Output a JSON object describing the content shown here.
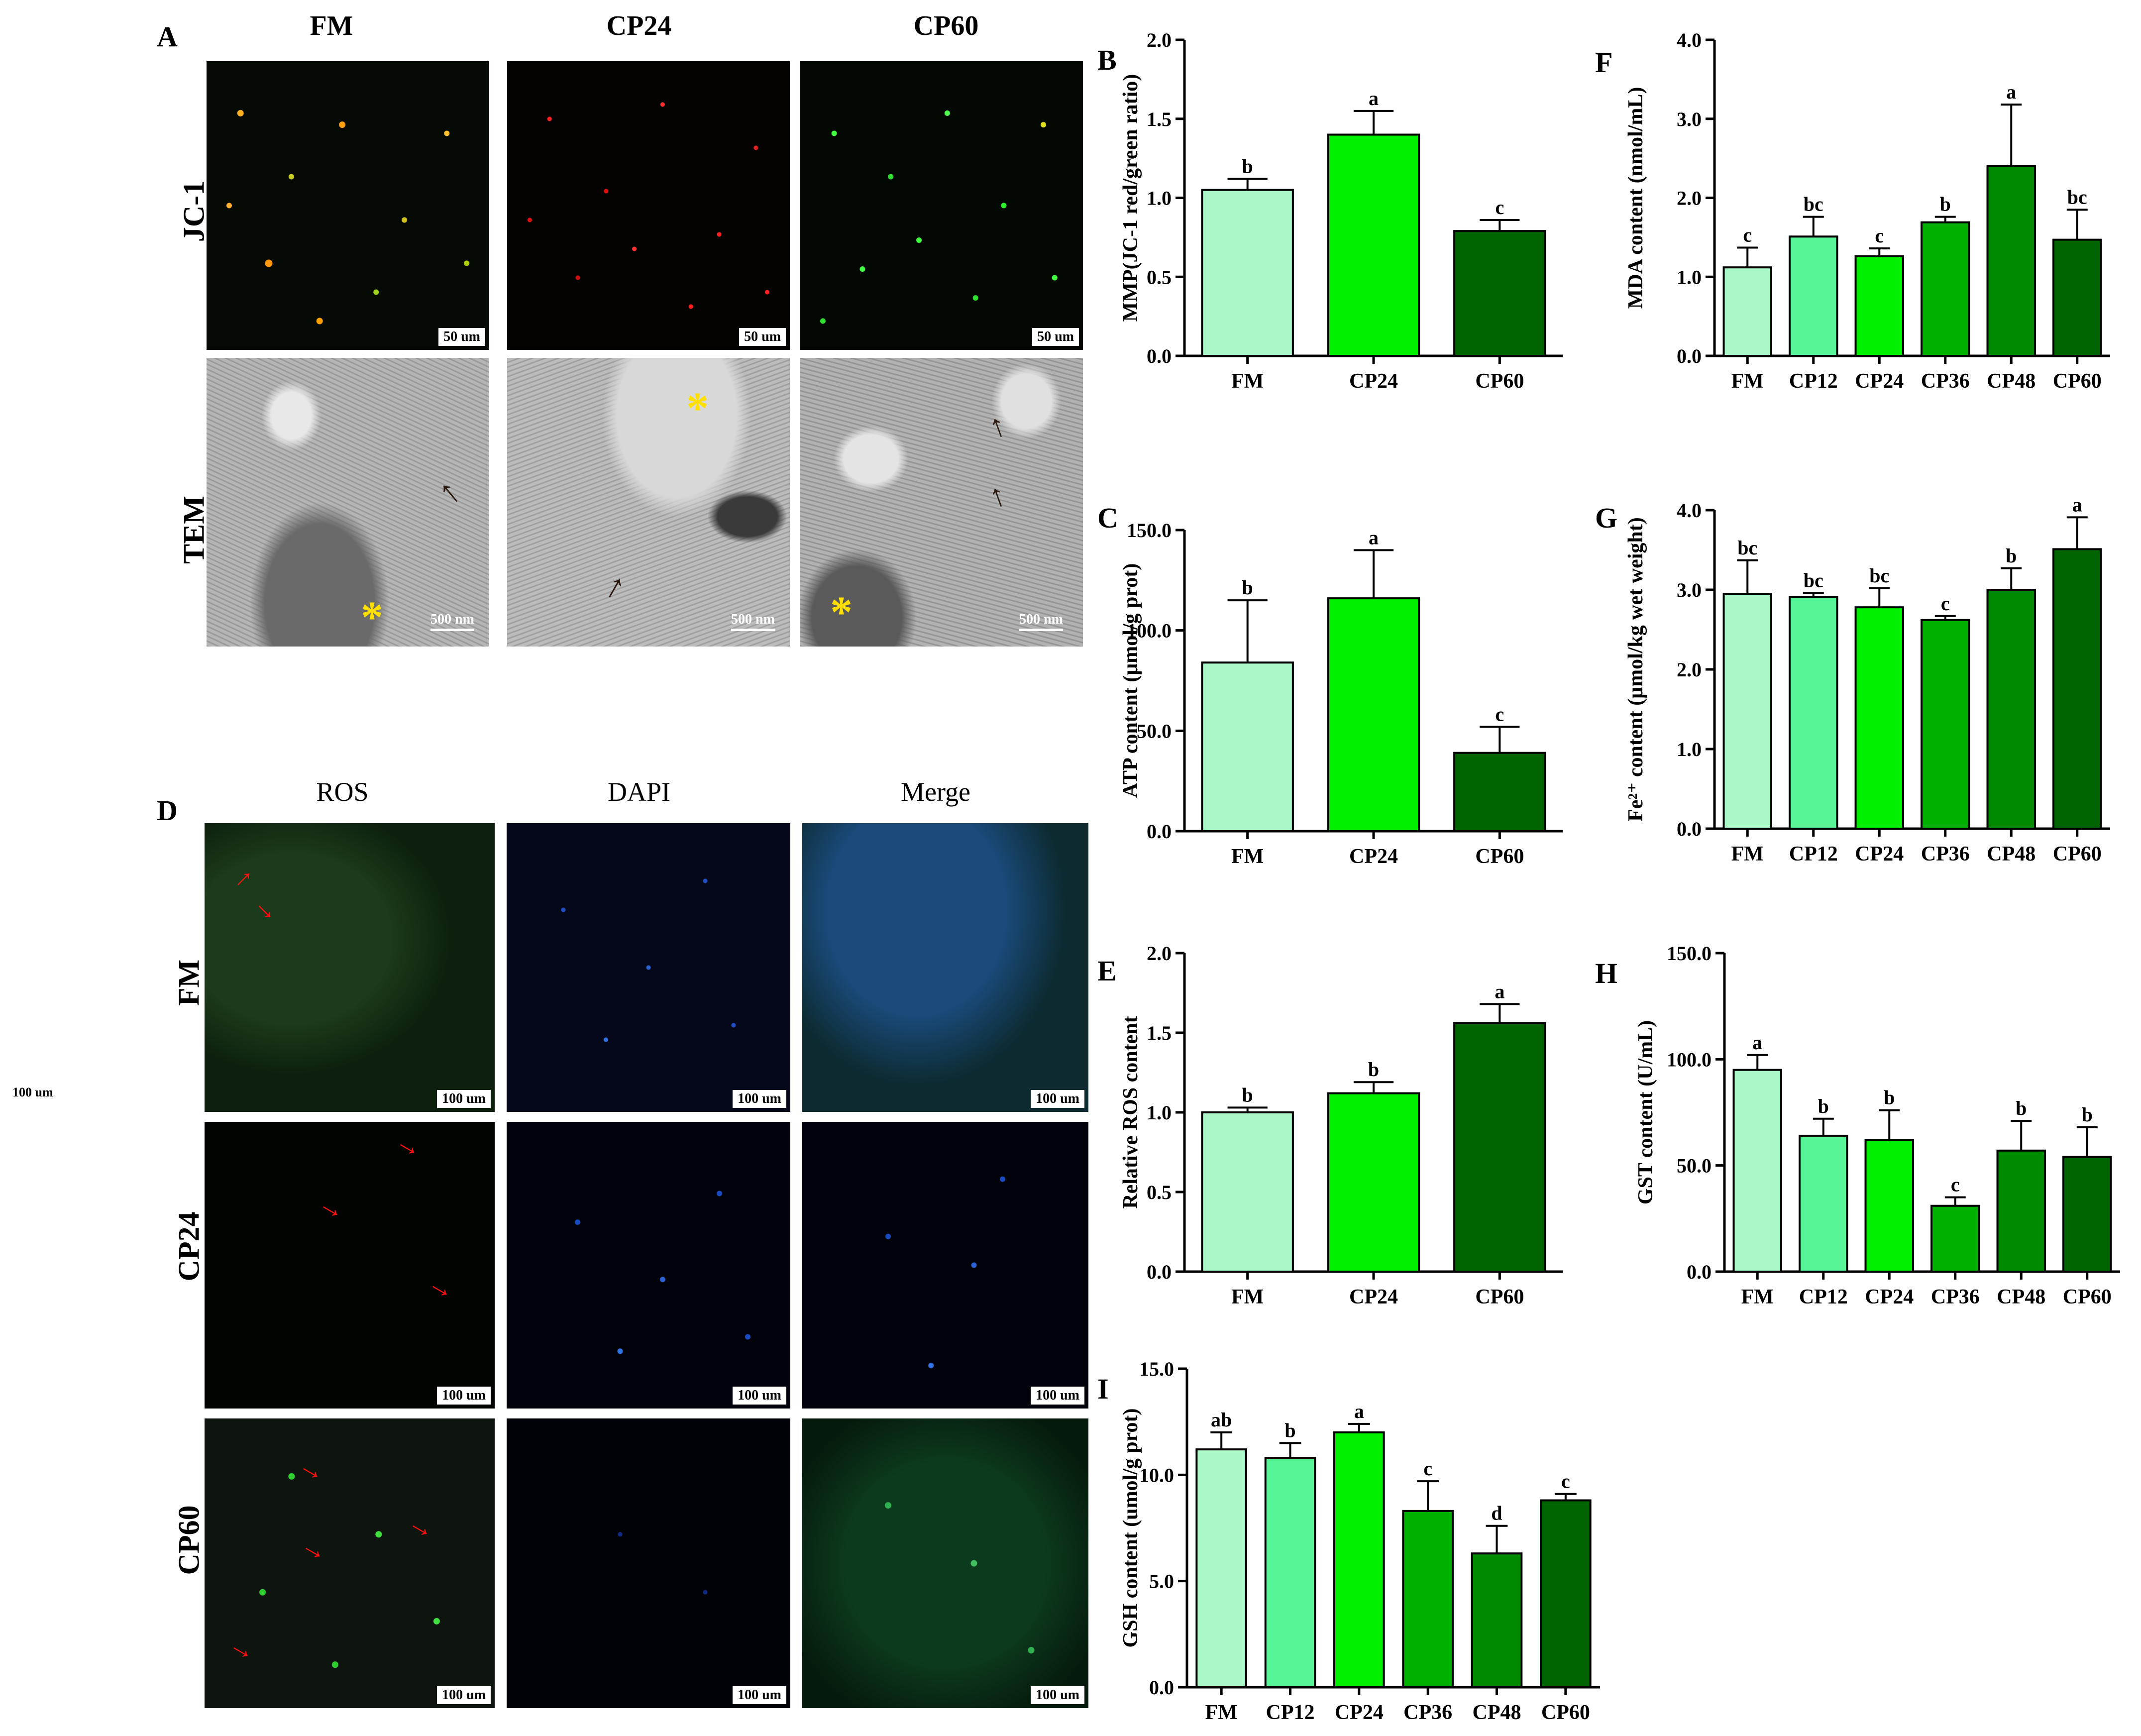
{
  "panel_A": {
    "letter": "A",
    "columns": [
      "FM",
      "CP24",
      "CP60"
    ],
    "rows": [
      "JC-1",
      "TEM"
    ],
    "jc1_scale": "50 um",
    "tem_scale": "500 nm"
  },
  "panel_D": {
    "letter": "D",
    "columns": [
      "ROS",
      "DAPI",
      "Merge"
    ],
    "rows": [
      "FM",
      "CP24",
      "CP60"
    ],
    "scale": "100 um"
  },
  "stray_label": "100 um",
  "colors": [
    "#aaf8c8",
    "#00f000",
    "#006400",
    "#58f598",
    "#00b000",
    "#008a00"
  ],
  "chart_data": [
    {
      "id": "B",
      "type": "bar",
      "letter": "B",
      "ylabel": "MMP(JC-1 red/green ratio)",
      "categories": [
        "FM",
        "CP24",
        "CP60"
      ],
      "values": [
        1.05,
        1.4,
        0.79
      ],
      "errors": [
        0.07,
        0.15,
        0.07
      ],
      "sig": [
        "b",
        "a",
        "c"
      ],
      "colors": [
        "#aaf8c8",
        "#00f000",
        "#006400"
      ],
      "ylim": [
        0,
        2.0
      ],
      "ticks": [
        "0.0",
        "0.5",
        "1.0",
        "1.5",
        "2.0"
      ]
    },
    {
      "id": "C",
      "type": "bar",
      "letter": "C",
      "ylabel": "ATP content (μmol/g prot)",
      "categories": [
        "FM",
        "CP24",
        "CP60"
      ],
      "values": [
        84,
        116,
        39
      ],
      "errors": [
        31,
        24,
        13
      ],
      "sig": [
        "b",
        "a",
        "c"
      ],
      "colors": [
        "#aaf8c8",
        "#00f000",
        "#006400"
      ],
      "ylim": [
        0,
        150
      ],
      "ticks": [
        "0.0",
        "50.0",
        "100.0",
        "150.0"
      ]
    },
    {
      "id": "E",
      "type": "bar",
      "letter": "E",
      "ylabel": "Relative ROS content",
      "categories": [
        "FM",
        "CP24",
        "CP60"
      ],
      "values": [
        1.0,
        1.12,
        1.56
      ],
      "errors": [
        0.03,
        0.07,
        0.12
      ],
      "sig": [
        "b",
        "b",
        "a"
      ],
      "colors": [
        "#aaf8c8",
        "#00f000",
        "#006400"
      ],
      "ylim": [
        0,
        2.0
      ],
      "ticks": [
        "0.0",
        "0.5",
        "1.0",
        "1.5",
        "2.0"
      ]
    },
    {
      "id": "F",
      "type": "bar",
      "letter": "F",
      "ylabel": "MDA  content (nmol/mL)",
      "categories": [
        "FM",
        "CP12",
        "CP24",
        "CP36",
        "CP48",
        "CP60"
      ],
      "values": [
        1.12,
        1.51,
        1.26,
        1.69,
        2.4,
        1.47
      ],
      "errors": [
        0.25,
        0.25,
        0.1,
        0.07,
        0.78,
        0.38
      ],
      "sig": [
        "c",
        "bc",
        "c",
        "b",
        "a",
        "bc"
      ],
      "colors": [
        "#aaf8c8",
        "#58f598",
        "#00f000",
        "#00b000",
        "#008a00",
        "#006400"
      ],
      "ylim": [
        0,
        4.0
      ],
      "ticks": [
        "0.0",
        "1.0",
        "2.0",
        "3.0",
        "4.0"
      ]
    },
    {
      "id": "G",
      "type": "bar",
      "letter": "G",
      "ylabel": "Fe²⁺ content (μmol/kg wet weight)",
      "categories": [
        "FM",
        "CP12",
        "CP24",
        "CP36",
        "CP48",
        "CP60"
      ],
      "values": [
        2.95,
        2.91,
        2.78,
        2.62,
        3.0,
        3.51
      ],
      "errors": [
        0.42,
        0.05,
        0.24,
        0.05,
        0.27,
        0.4
      ],
      "sig": [
        "bc",
        "bc",
        "bc",
        "c",
        "b",
        "a"
      ],
      "colors": [
        "#aaf8c8",
        "#58f598",
        "#00f000",
        "#00b000",
        "#008a00",
        "#006400"
      ],
      "ylim": [
        0,
        4.0
      ],
      "ticks": [
        "0.0",
        "1.0",
        "2.0",
        "3.0",
        "4.0"
      ]
    },
    {
      "id": "H",
      "type": "bar",
      "letter": "H",
      "ylabel": "GST content (U/mL)",
      "categories": [
        "FM",
        "CP12",
        "CP24",
        "CP36",
        "CP48",
        "CP60"
      ],
      "values": [
        95,
        64,
        62,
        31,
        57,
        54
      ],
      "errors": [
        7,
        8,
        14,
        4,
        14,
        14
      ],
      "sig": [
        "a",
        "b",
        "b",
        "c",
        "b",
        "b"
      ],
      "colors": [
        "#aaf8c8",
        "#58f598",
        "#00f000",
        "#00b000",
        "#008a00",
        "#006400"
      ],
      "ylim": [
        0,
        150
      ],
      "ticks": [
        "0.0",
        "50.0",
        "100.0",
        "150.0"
      ]
    },
    {
      "id": "I",
      "type": "bar",
      "letter": "I",
      "ylabel": "GSH content (umol/g prot)",
      "categories": [
        "FM",
        "CP12",
        "CP24",
        "CP36",
        "CP48",
        "CP60"
      ],
      "values": [
        11.2,
        10.8,
        12.0,
        8.3,
        6.3,
        8.8
      ],
      "errors": [
        0.8,
        0.7,
        0.4,
        1.4,
        1.3,
        0.3
      ],
      "sig": [
        "ab",
        "b",
        "a",
        "c",
        "d",
        "c"
      ],
      "colors": [
        "#aaf8c8",
        "#58f598",
        "#00f000",
        "#00b000",
        "#008a00",
        "#006400"
      ],
      "ylim": [
        0,
        15.0
      ],
      "ticks": [
        "0.0",
        "5.0",
        "10.0",
        "15.0"
      ]
    }
  ]
}
